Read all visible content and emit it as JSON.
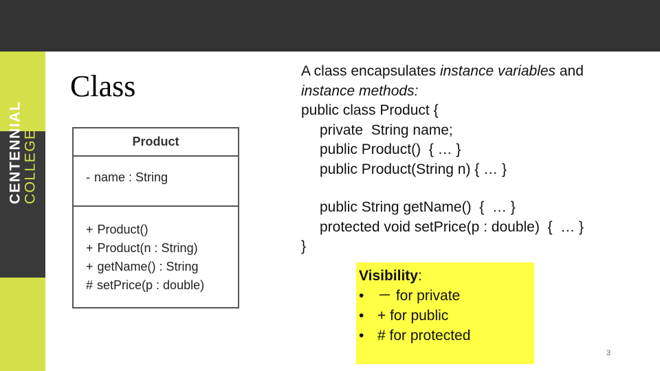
{
  "logo": {
    "line1": "CENTENNIAL",
    "line2": "COLLEGE"
  },
  "slide": {
    "title": "Class",
    "page_number": "3"
  },
  "uml": {
    "class_name": "Product",
    "attributes": [
      {
        "vis": "-",
        "text": "name : String"
      }
    ],
    "operations": [
      {
        "vis": "+",
        "text": "Product()"
      },
      {
        "vis": "+",
        "text": "Product(n : String)"
      },
      {
        "vis": "+",
        "text": "getName() : String"
      },
      {
        "vis": "#",
        "text": "setPrice(p : double)"
      }
    ]
  },
  "description": {
    "intro_a": "A class encapsulates ",
    "intro_b": "instance variables",
    "intro_c": " and",
    "intro_d": "instance methods:",
    "code": [
      "public class Product {",
      "private  String name;",
      "public Product()  { … }",
      "public Product(String n) { … }",
      "",
      "public String getName()  {  … }",
      "protected void setPrice(p : double)  {  … }",
      "}"
    ]
  },
  "visibility": {
    "heading": "Visibility",
    "colon": ":",
    "bullet": "•",
    "items": [
      "－ for private",
      "+ for public",
      "# for protected"
    ]
  }
}
